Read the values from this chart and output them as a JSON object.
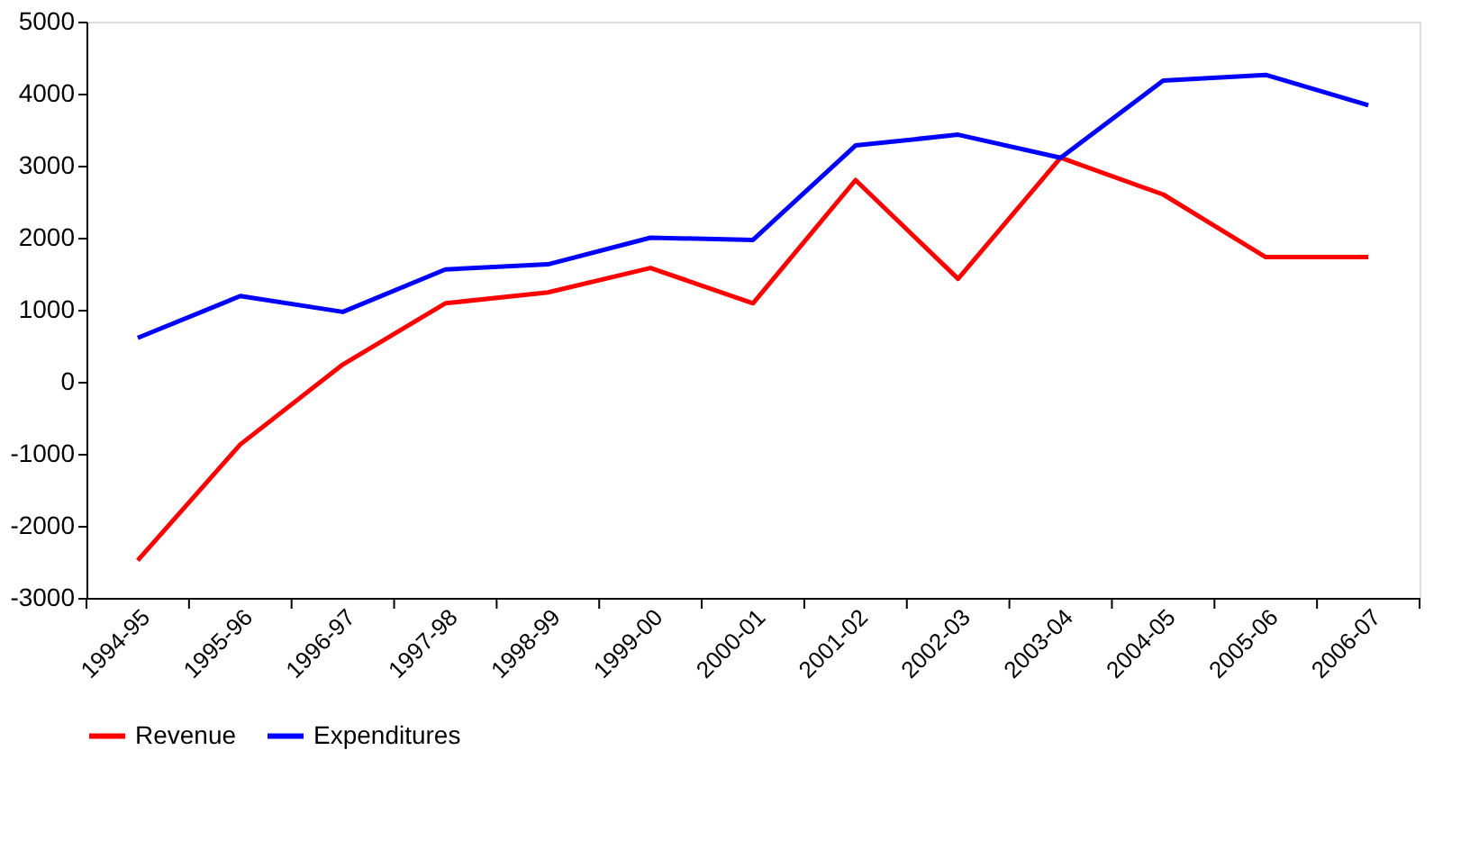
{
  "chart_data": {
    "type": "line",
    "categories": [
      "1994-95",
      "1995-96",
      "1996-97",
      "1997-98",
      "1998-99",
      "1999-00",
      "2000-01",
      "2001-02",
      "2002-03",
      "2003-04",
      "2004-05",
      "2005-06",
      "2006-07"
    ],
    "series": [
      {
        "name": "Revenue",
        "color": "#ff0000",
        "values": [
          -2480,
          -870,
          240,
          1090,
          1240,
          1580,
          1090,
          2800,
          1430,
          3110,
          2600,
          1730,
          1730
        ]
      },
      {
        "name": "Expenditures",
        "color": "#0000ff",
        "values": [
          610,
          1190,
          970,
          1560,
          1630,
          2000,
          1970,
          3280,
          3430,
          3110,
          4180,
          4260,
          3840
        ]
      }
    ],
    "ylim": [
      -3000,
      5000
    ],
    "yticks": [
      -3000,
      -2000,
      -1000,
      0,
      1000,
      2000,
      3000,
      4000,
      5000
    ],
    "grid": false,
    "legend": "bottom",
    "marker": "none",
    "line_style": "solid"
  }
}
